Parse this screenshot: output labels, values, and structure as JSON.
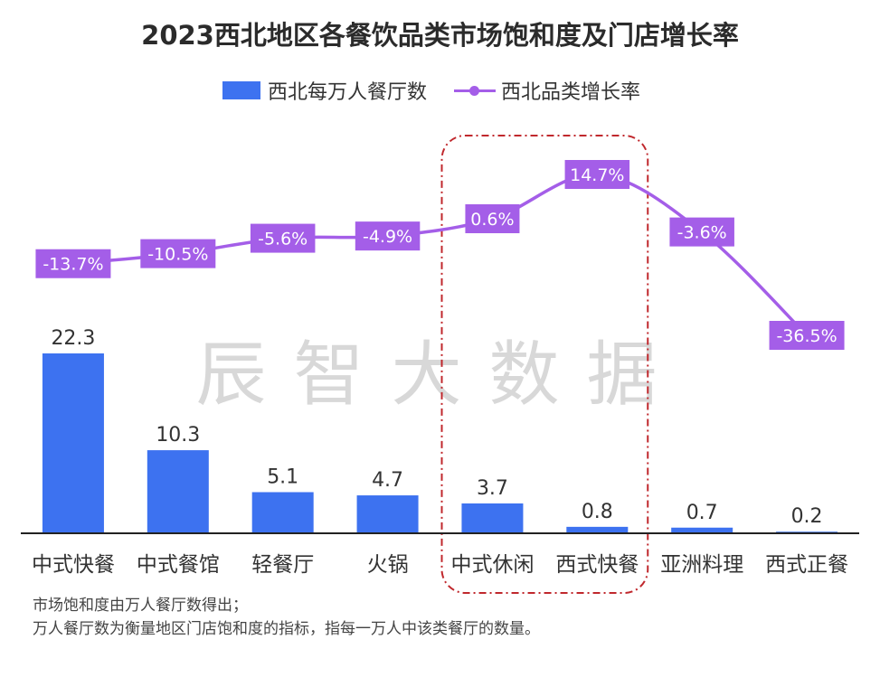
{
  "chart_data": {
    "type": "bar",
    "title": "2023西北地区各餐饮品类市场饱和度及门店增长率",
    "categories": [
      "中式快餐",
      "中式餐馆",
      "轻餐厅",
      "火锅",
      "中式休闲",
      "西式快餐",
      "亚洲料理",
      "西式正餐"
    ],
    "series": [
      {
        "name": "西北每万人餐厅数",
        "type": "bar",
        "color": "#3d72f0",
        "values": [
          22.3,
          10.3,
          5.1,
          4.7,
          3.7,
          0.8,
          0.7,
          0.2
        ],
        "labels": [
          "22.3",
          "10.3",
          "5.1",
          "4.7",
          "3.7",
          "0.8",
          "0.7",
          "0.2"
        ]
      },
      {
        "name": "西北品类增长率",
        "type": "line",
        "color": "#a45ee8",
        "values": [
          -13.7,
          -10.5,
          -5.6,
          -4.9,
          0.6,
          14.7,
          -3.6,
          -36.5
        ],
        "labels": [
          "-13.7%",
          "-10.5%",
          "-5.6%",
          "-4.9%",
          "0.6%",
          "14.7%",
          "-3.6%",
          "-36.5%"
        ]
      }
    ],
    "highlight": [
      "中式休闲",
      "西式快餐"
    ],
    "grid": false,
    "legend": "top-center"
  },
  "watermark": "辰智大数据",
  "notes": [
    "市场饱和度由万人餐厅数得出；",
    "万人餐厅数为衡量地区门店饱和度的指标，指每一万人中该类餐厅的数量。"
  ]
}
